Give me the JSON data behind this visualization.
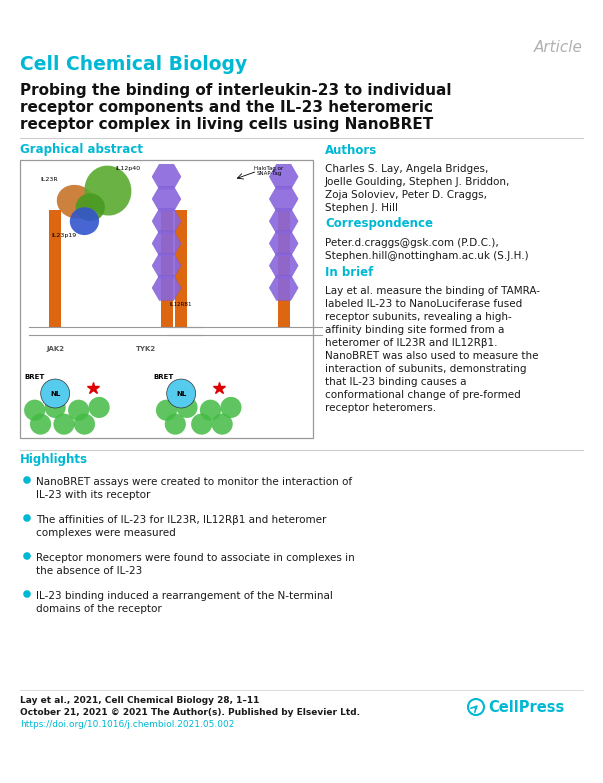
{
  "bg_color": "#ffffff",
  "article_label": "Article",
  "article_color": "#b0b0b0",
  "journal_name": "Cell Chemical Biology",
  "journal_color": "#00b8d4",
  "title_line1": "Probing the binding of interleukin-23 to individual",
  "title_line2": "receptor components and the IL-23 heteromeric",
  "title_line3": "receptor complex in living cells using NanoBRET",
  "title_color": "#111111",
  "section_color": "#00b8d4",
  "graphical_abstract_label": "Graphical abstract",
  "authors_label": "Authors",
  "authors_lines": [
    "Charles S. Lay, Angela Bridges,",
    "Joelle Goulding, Stephen J. Briddon,",
    "Zoja Soloviev, Peter D. Craggs,",
    "Stephen J. Hill"
  ],
  "correspondence_label": "Correspondence",
  "correspondence_lines": [
    "Peter.d.craggs@gsk.com (P.D.C.),",
    "Stephen.hill@nottingham.ac.uk (S.J.H.)"
  ],
  "in_brief_label": "In brief",
  "in_brief_lines": [
    "Lay et al. measure the binding of TAMRA-",
    "labeled IL-23 to NanoLuciferase fused",
    "receptor subunits, revealing a high-",
    "affinity binding site formed from a",
    "heteromer of IL23R and IL12Rβ1.",
    "NanoBRET was also used to measure the",
    "interaction of subunits, demonstrating",
    "that IL-23 binding causes a",
    "conformational change of pre-formed",
    "receptor heteromers."
  ],
  "highlights_label": "Highlights",
  "highlights": [
    "NanoBRET assays were created to monitor the interaction of\nIL-23 with its receptor",
    "The affinities of IL-23 for IL23R, IL12Rβ1 and heteromer\ncomplexes were measured",
    "Receptor monomers were found to associate in complexes in\nthe absence of IL-23",
    "IL-23 binding induced a rearrangement of the N-terminal\ndomains of the receptor"
  ],
  "footer_text1": "Lay et al., 2021, Cell Chemical Biology 28, 1–11",
  "footer_text2": "October 21, 2021 © 2021 The Author(s). Published by Elsevier Ltd.",
  "footer_doi": "https://doi.org/10.1016/j.chembiol.2021.05.002",
  "footer_doi_color": "#00b8d4",
  "footer_text_color": "#1a1a1a",
  "box_border_color": "#999999",
  "highlight_bullet_color": "#00b8d4",
  "divider_color": "#cccccc"
}
